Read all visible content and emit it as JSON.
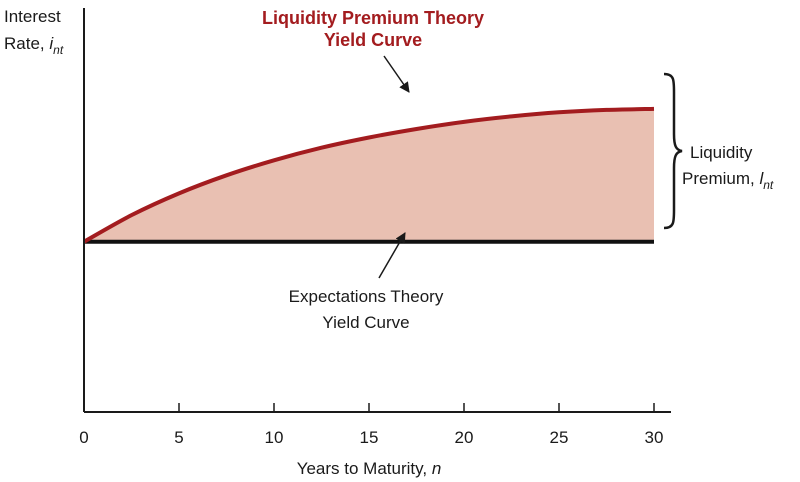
{
  "colors": {
    "premium_curve": "#a31c1f",
    "premium_fill": "#e9c0b2",
    "expectations_line": "#111111",
    "axis": "#1a1a1a"
  },
  "chart_data": {
    "type": "line",
    "xlim": [
      0,
      30
    ],
    "ylim": [
      0,
      1
    ],
    "x_ticks": [
      0,
      5,
      10,
      15,
      20,
      25,
      30
    ],
    "xlabel": "Years to Maturity, ",
    "xlabel_var": "n",
    "ylabel_line1": "Interest",
    "ylabel_line2": "Rate, ",
    "ylabel_var": "i",
    "ylabel_sub": "nt",
    "grid": false,
    "series": [
      {
        "name": "Liquidity Premium Theory Yield Curve",
        "x": [
          0,
          2.5,
          5,
          7.5,
          10,
          12.5,
          15,
          17.5,
          20,
          22.5,
          25,
          27.5,
          30
        ],
        "y": [
          0.5,
          0.578,
          0.642,
          0.695,
          0.739,
          0.776,
          0.806,
          0.831,
          0.852,
          0.868,
          0.88,
          0.887,
          0.89
        ]
      },
      {
        "name": "Expectations Theory Yield Curve",
        "x": [
          0,
          30
        ],
        "y": [
          0.5,
          0.5
        ]
      }
    ],
    "annotations": {
      "premium_title_line1": "Liquidity Premium Theory",
      "premium_title_line2": "Yield Curve",
      "expectations_line1": "Expectations Theory",
      "expectations_line2": "Yield Curve",
      "liquidity_label_line1": "Liquidity",
      "liquidity_label_line2": "Premium, ",
      "liquidity_var": "l",
      "liquidity_sub": "nt"
    }
  }
}
